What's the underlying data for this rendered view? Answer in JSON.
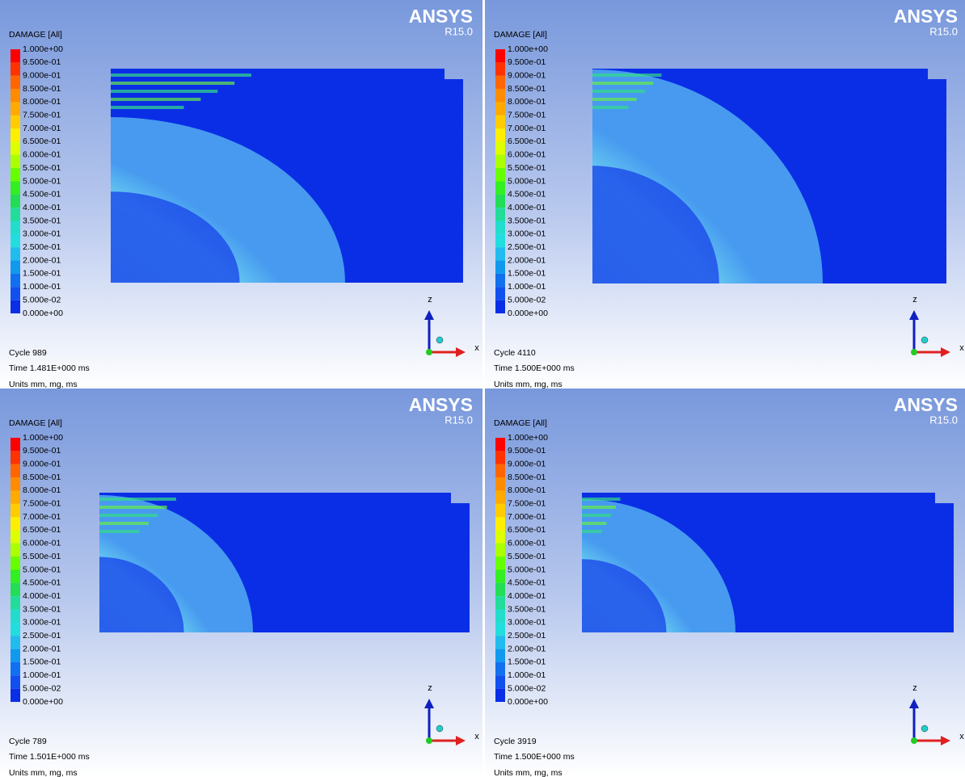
{
  "panels": [
    {
      "legend_title": "DAMAGE [All]",
      "legend_labels": [
        "1.000e+00",
        "9.500e-01",
        "9.000e-01",
        "8.500e-01",
        "8.000e-01",
        "7.500e-01",
        "7.000e-01",
        "6.500e-01",
        "6.000e-01",
        "5.500e-01",
        "5.000e-01",
        "4.500e-01",
        "4.000e-01",
        "3.500e-01",
        "3.000e-01",
        "2.500e-01",
        "2.000e-01",
        "1.500e-01",
        "1.000e-01",
        "5.000e-02",
        "0.000e+00"
      ],
      "brand": "ANSYS",
      "version": "R15.0",
      "cycle": "Cycle 989",
      "time": "Time 1.481E+000 ms",
      "units": "Units mm, mg, ms",
      "axis_z": "z",
      "axis_x": "x"
    },
    {
      "legend_title": "DAMAGE [All]",
      "legend_labels": [
        "1.000e+00",
        "9.500e-01",
        "9.000e-01",
        "8.500e-01",
        "8.000e-01",
        "7.500e-01",
        "7.000e-01",
        "6.500e-01",
        "6.000e-01",
        "5.500e-01",
        "5.000e-01",
        "4.500e-01",
        "4.000e-01",
        "3.500e-01",
        "3.000e-01",
        "2.500e-01",
        "2.000e-01",
        "1.500e-01",
        "1.000e-01",
        "5.000e-02",
        "0.000e+00"
      ],
      "brand": "ANSYS",
      "version": "R15.0",
      "cycle": "Cycle 4110",
      "time": "Time 1.500E+000 ms",
      "units": "Units mm, mg, ms",
      "axis_z": "z",
      "axis_x": "x"
    },
    {
      "legend_title": "DAMAGE [All]",
      "legend_labels": [
        "1.000e+00",
        "9.500e-01",
        "9.000e-01",
        "8.500e-01",
        "8.000e-01",
        "7.500e-01",
        "7.000e-01",
        "6.500e-01",
        "6.000e-01",
        "5.500e-01",
        "5.000e-01",
        "4.500e-01",
        "4.000e-01",
        "3.500e-01",
        "3.000e-01",
        "2.500e-01",
        "2.000e-01",
        "1.500e-01",
        "1.000e-01",
        "5.000e-02",
        "0.000e+00"
      ],
      "brand": "ANSYS",
      "version": "R15.0",
      "cycle": "Cycle 789",
      "time": "Time 1.501E+000 ms",
      "units": "Units mm, mg, ms",
      "axis_z": "z",
      "axis_x": "x"
    },
    {
      "legend_title": "DAMAGE [All]",
      "legend_labels": [
        "1.000e+00",
        "9.500e-01",
        "9.000e-01",
        "8.500e-01",
        "8.000e-01",
        "7.500e-01",
        "7.000e-01",
        "6.500e-01",
        "6.000e-01",
        "5.500e-01",
        "5.000e-01",
        "4.500e-01",
        "4.000e-01",
        "3.500e-01",
        "3.000e-01",
        "2.500e-01",
        "2.000e-01",
        "1.500e-01",
        "1.000e-01",
        "5.000e-02",
        "0.000e+00"
      ],
      "brand": "ANSYS",
      "version": "R15.0",
      "cycle": "Cycle 3919",
      "time": "Time 1.500E+000 ms",
      "units": "Units mm, mg, ms",
      "axis_z": "z",
      "axis_x": "x"
    }
  ]
}
